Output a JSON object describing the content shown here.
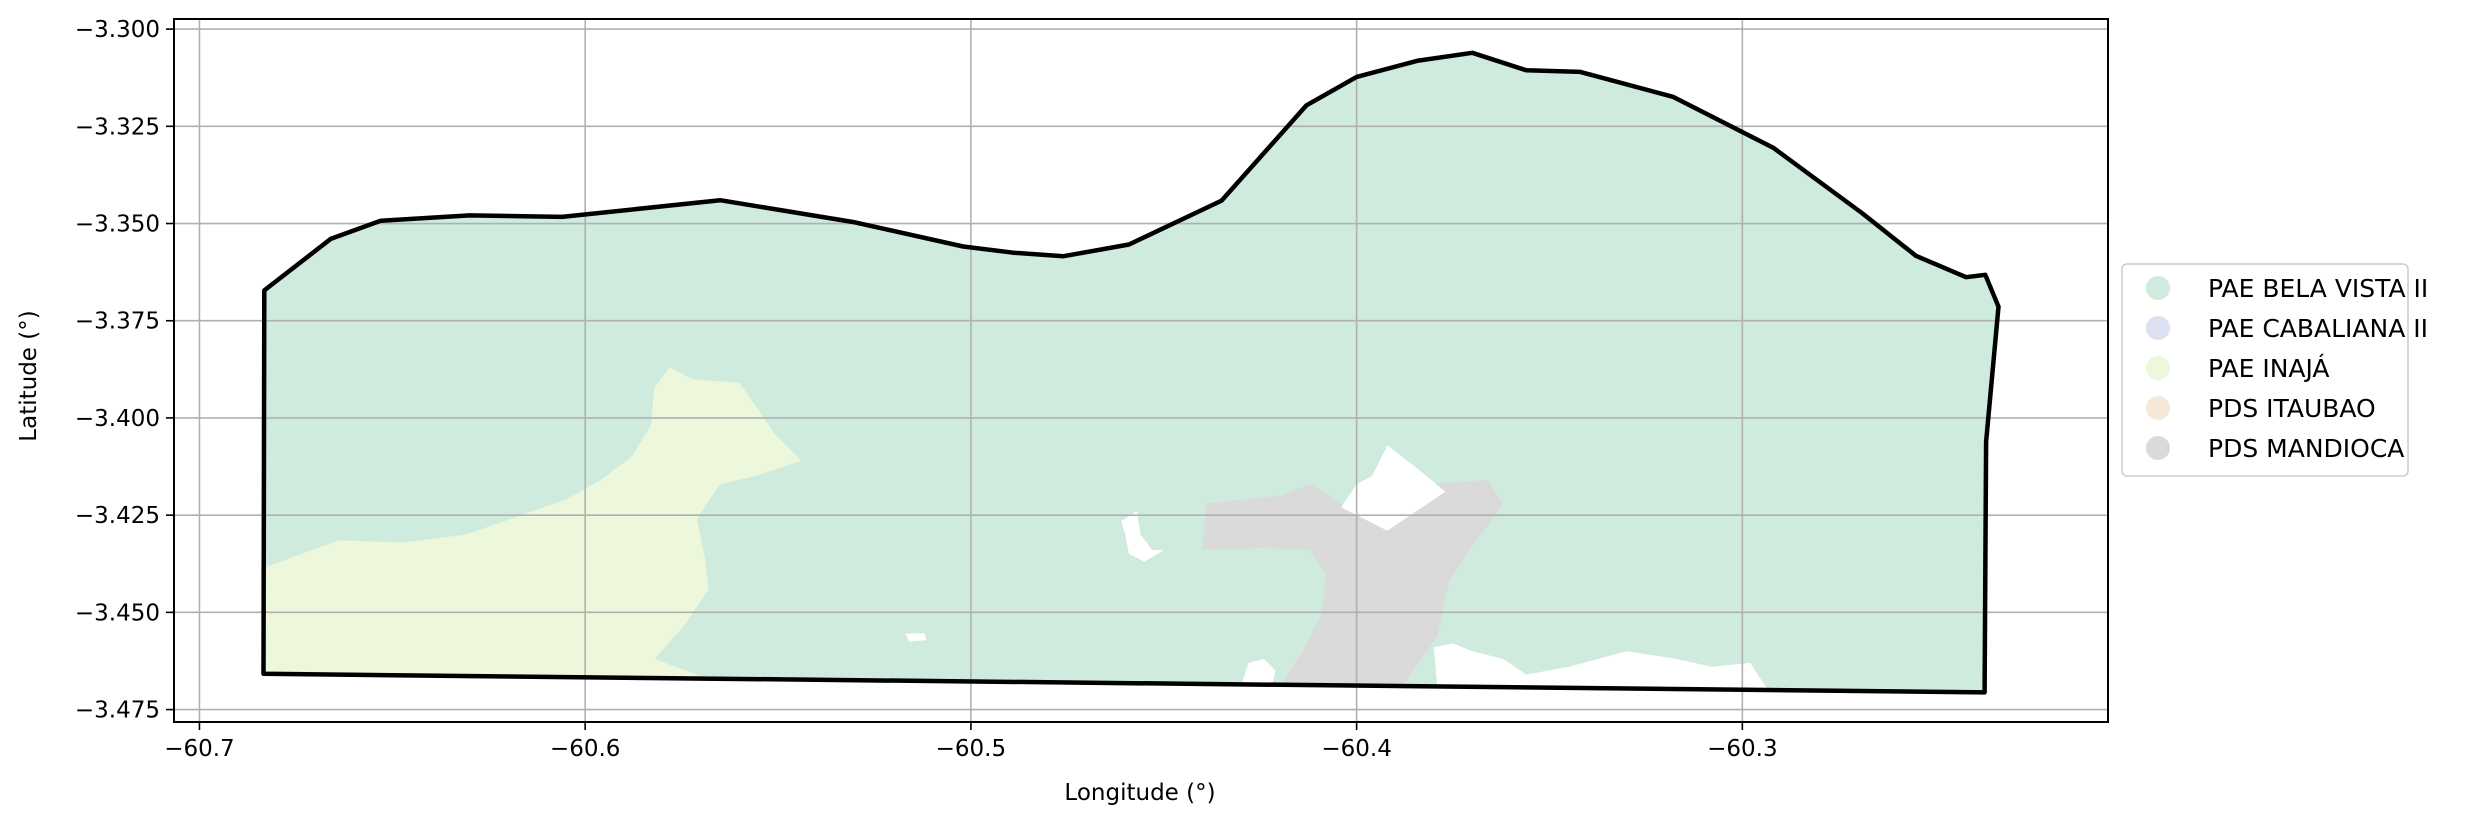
{
  "chart_data": {
    "type": "map",
    "title": "",
    "xlabel": "Longitude (°)",
    "ylabel": "Latitude (°)",
    "xlim": [
      -60.7066,
      -60.2052
    ],
    "ylim": [
      -3.4782,
      -3.2974
    ],
    "xticks": [
      -60.7,
      -60.6,
      -60.5,
      -60.4,
      -60.3
    ],
    "yticks": [
      -3.3,
      -3.325,
      -3.35,
      -3.375,
      -3.4,
      -3.425,
      -3.45,
      -3.475
    ],
    "xtick_labels": [
      "−60.7",
      "−60.6",
      "−60.5",
      "−60.4",
      "−60.3"
    ],
    "ytick_labels": [
      "−3.300",
      "−3.325",
      "−3.350",
      "−3.375",
      "−3.400",
      "−3.425",
      "−3.450",
      "−3.475"
    ],
    "grid": true,
    "legend_position": "center-right outside",
    "legend": [
      {
        "name": "PAE BELA VISTA II",
        "color": "#cfebdd"
      },
      {
        "name": "PAE CABALIANA II",
        "color": "#dde0f0"
      },
      {
        "name": "PAE INAJÁ",
        "color": "#ecf7db"
      },
      {
        "name": "PDS ITAUBAO",
        "color": "#f5e8d8"
      },
      {
        "name": "PDS MANDIOCA",
        "color": "#dadada"
      }
    ],
    "boundary": [
      [
        -60.6834,
        -3.4658
      ],
      [
        -60.6832,
        -3.3672
      ],
      [
        -60.6659,
        -3.3539
      ],
      [
        -60.653,
        -3.3493
      ],
      [
        -60.63,
        -3.3479
      ],
      [
        -60.606,
        -3.3483
      ],
      [
        -60.565,
        -3.344
      ],
      [
        -60.53,
        -3.3497
      ],
      [
        -60.502,
        -3.3559
      ],
      [
        -60.489,
        -3.3575
      ],
      [
        -60.476,
        -3.3584
      ],
      [
        -60.459,
        -3.3554
      ],
      [
        -60.435,
        -3.3441
      ],
      [
        -60.413,
        -3.3196
      ],
      [
        -60.4,
        -3.3123
      ],
      [
        -60.384,
        -3.3081
      ],
      [
        -60.37,
        -3.3061
      ],
      [
        -60.356,
        -3.3106
      ],
      [
        -60.342,
        -3.311
      ],
      [
        -60.318,
        -3.3174
      ],
      [
        -60.292,
        -3.3305
      ],
      [
        -60.269,
        -3.3473
      ],
      [
        -60.255,
        -3.3583
      ],
      [
        -60.242,
        -3.3638
      ],
      [
        -60.237,
        -3.3632
      ],
      [
        -60.2336,
        -3.3714
      ],
      [
        -60.2368,
        -3.4061
      ],
      [
        -60.2372,
        -3.4706
      ]
    ],
    "regions": [
      {
        "name": "PAE INAJÁ",
        "polygon": [
          [
            -60.6834,
            -3.4658
          ],
          [
            -60.6832,
            -3.4385
          ],
          [
            -60.664,
            -3.4315
          ],
          [
            -60.647,
            -3.432
          ],
          [
            -60.631,
            -3.43
          ],
          [
            -60.618,
            -3.4255
          ],
          [
            -60.605,
            -3.421
          ],
          [
            -60.596,
            -3.416
          ],
          [
            -60.588,
            -3.41
          ],
          [
            -60.583,
            -3.402
          ],
          [
            -60.582,
            -3.392
          ],
          [
            -60.578,
            -3.387
          ],
          [
            -60.572,
            -3.39
          ],
          [
            -60.56,
            -3.391
          ],
          [
            -60.555,
            -3.398
          ],
          [
            -60.551,
            -3.404
          ],
          [
            -60.544,
            -3.411
          ],
          [
            -60.556,
            -3.415
          ],
          [
            -60.565,
            -3.417
          ],
          [
            -60.571,
            -3.426
          ],
          [
            -60.569,
            -3.436
          ],
          [
            -60.568,
            -3.444
          ],
          [
            -60.574,
            -3.453
          ],
          [
            -60.582,
            -3.462
          ],
          [
            -60.57,
            -3.4664
          ]
        ]
      },
      {
        "name": "PDS MANDIOCA",
        "polygon": [
          [
            -60.44,
            -3.434
          ],
          [
            -60.439,
            -3.422
          ],
          [
            -60.42,
            -3.42
          ],
          [
            -60.412,
            -3.417
          ],
          [
            -60.399,
            -3.425
          ],
          [
            -60.382,
            -3.417
          ],
          [
            -60.366,
            -3.416
          ],
          [
            -60.362,
            -3.422
          ],
          [
            -60.37,
            -3.433
          ],
          [
            -60.376,
            -3.442
          ],
          [
            -60.379,
            -3.456
          ],
          [
            -60.388,
            -3.4688
          ],
          [
            -60.42,
            -3.469
          ],
          [
            -60.414,
            -3.46
          ],
          [
            -60.409,
            -3.45
          ],
          [
            -60.408,
            -3.44
          ],
          [
            -60.412,
            -3.434
          ],
          [
            -60.424,
            -3.4335
          ]
        ]
      }
    ],
    "holes": [
      [
        [
          -60.396,
          -3.415
        ],
        [
          -60.392,
          -3.407
        ],
        [
          -60.383,
          -3.414
        ],
        [
          -60.377,
          -3.419
        ],
        [
          -60.392,
          -3.429
        ],
        [
          -60.404,
          -3.423
        ],
        [
          -60.4,
          -3.417
        ]
      ],
      [
        [
          -60.461,
          -3.4265
        ],
        [
          -60.457,
          -3.424
        ],
        [
          -60.456,
          -3.43
        ],
        [
          -60.453,
          -3.434
        ],
        [
          -60.45,
          -3.434
        ],
        [
          -60.455,
          -3.437
        ],
        [
          -60.459,
          -3.435
        ],
        [
          -60.46,
          -3.43
        ]
      ],
      [
        [
          -60.517,
          -3.4555
        ],
        [
          -60.512,
          -3.4553
        ],
        [
          -60.5115,
          -3.4572
        ],
        [
          -60.516,
          -3.4575
        ]
      ],
      [
        [
          -60.43,
          -3.469
        ],
        [
          -60.428,
          -3.463
        ],
        [
          -60.424,
          -3.462
        ],
        [
          -60.421,
          -3.465
        ],
        [
          -60.422,
          -3.469
        ]
      ],
      [
        [
          -60.379,
          -3.47
        ],
        [
          -60.38,
          -3.459
        ],
        [
          -60.375,
          -3.458
        ],
        [
          -60.37,
          -3.46
        ],
        [
          -60.362,
          -3.462
        ],
        [
          -60.356,
          -3.466
        ],
        [
          -60.345,
          -3.464
        ],
        [
          -60.33,
          -3.46
        ],
        [
          -60.317,
          -3.462
        ],
        [
          -60.308,
          -3.464
        ],
        [
          -60.298,
          -3.463
        ],
        [
          -60.294,
          -3.469
        ],
        [
          -60.293,
          -3.4705
        ]
      ]
    ]
  }
}
